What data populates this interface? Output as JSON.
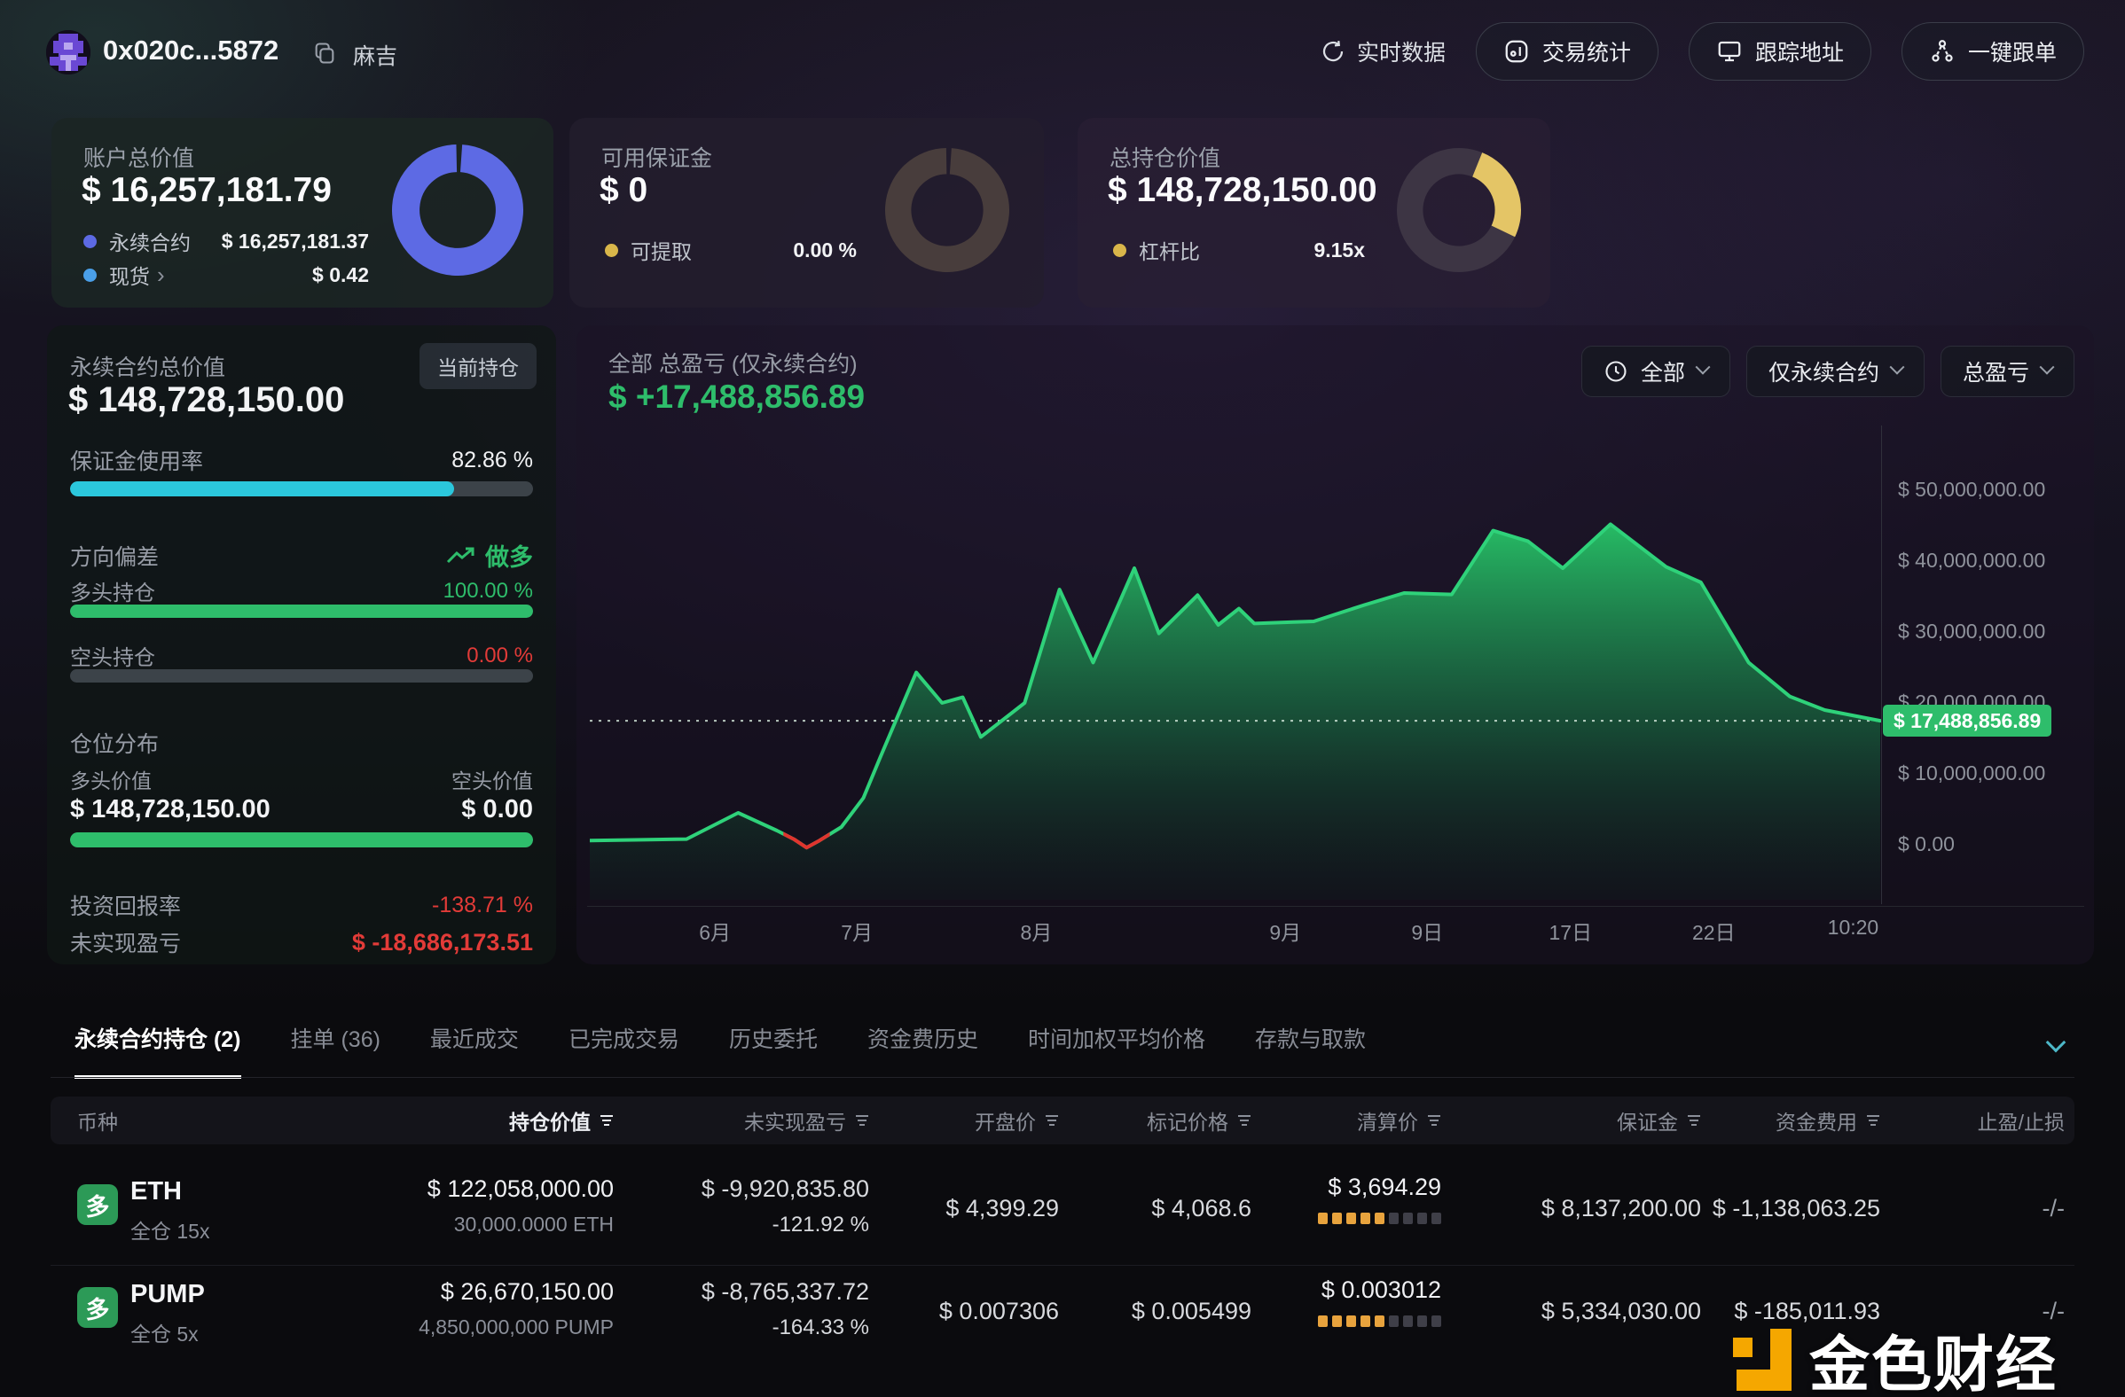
{
  "header": {
    "address": "0x020c...5872",
    "alias": "麻吉",
    "live_label": "实时数据",
    "buttons": [
      {
        "label": "交易统计",
        "icon": "stats-icon"
      },
      {
        "label": "跟踪地址",
        "icon": "monitor-icon"
      },
      {
        "label": "一键跟单",
        "icon": "copy-trade-icon"
      }
    ]
  },
  "colors": {
    "green": "#2ebd6b",
    "red": "#e23b38",
    "cyan": "#2bc7dc",
    "blue": "#5d6ae4",
    "light_blue": "#4a9fe8",
    "yellow": "#e4c566",
    "orange": "#f5a700"
  },
  "stat_cards": [
    {
      "title": "账户总价值",
      "value": "$ 16,257,181.79",
      "rows": [
        {
          "label": "永续合约",
          "value": "$ 16,257,181.37",
          "dot": "#5d6ae4",
          "arrow": ""
        },
        {
          "label": "现货",
          "value": "$ 0.42",
          "dot": "#4a9fe8",
          "arrow": "›"
        }
      ],
      "donut": {
        "color": "#5d6ae4",
        "track": "",
        "fraction": 0.985,
        "rotate": -86
      }
    },
    {
      "title": "可用保证金",
      "value": "$ 0",
      "rows": [
        {
          "label": "可提取",
          "value": "0.00 %",
          "dot": "#d9b64a",
          "arrow": ""
        }
      ],
      "donut": {
        "color": "#483d3c",
        "track": "",
        "fraction": 0.985,
        "rotate": -86
      }
    },
    {
      "title": "总持仓价值",
      "value": "$ 148,728,150.00",
      "rows": [
        {
          "label": "杠杆比",
          "value": "9.15x",
          "dot": "#d9b64a",
          "arrow": ""
        }
      ],
      "donut": {
        "color": "#e4c566",
        "track": "#3d3544",
        "fraction": 0.26,
        "rotate": -68
      }
    }
  ],
  "position_panel": {
    "title": "永续合约总价值",
    "badge": "当前持仓",
    "value": "$ 148,728,150.00",
    "margin_label": "保证金使用率",
    "margin_value": "82.86 %",
    "margin_pct": 82.86,
    "bias_label": "方向偏差",
    "bias_value": "做多",
    "long_label": "多头持仓",
    "long_value": "100.00 %",
    "long_pct": 100,
    "short_label": "空头持仓",
    "short_value": "0.00 %",
    "short_pct": 0,
    "dist_label": "仓位分布",
    "long_val_label": "多头价值",
    "long_val": "$ 148,728,150.00",
    "short_val_label": "空头价值",
    "short_val": "$ 0.00",
    "dist_pct": 100,
    "roi_label": "投资回报率",
    "roi_value": "-138.71 %",
    "upnl_label": "未实现盈亏",
    "upnl_value": "$ -18,686,173.51"
  },
  "chart_panel": {
    "title": "全部 总盈亏 (仅永续合约)",
    "value": "$ +17,488,856.89",
    "filters": [
      {
        "label": "全部",
        "icon": "clock-icon"
      },
      {
        "label": "仅永续合约",
        "icon": ""
      },
      {
        "label": "总盈亏",
        "icon": ""
      }
    ]
  },
  "chart_data": {
    "type": "area",
    "title": "全部 总盈亏 (仅永续合约)",
    "unit": "USD (millions)",
    "ylim": [
      0,
      50000000
    ],
    "current_value": 17488856.89,
    "current_value_label": "$ 17,488,856.89",
    "line_color": "#2fd27a",
    "dip_color": "#e0342e",
    "y_ticks": [
      {
        "label": "$ 50,000,000.00",
        "value": 50
      },
      {
        "label": "$ 40,000,000.00",
        "value": 40
      },
      {
        "label": "$ 30,000,000.00",
        "value": 30
      },
      {
        "label": "$ 20,000,000.00",
        "value": 20
      },
      {
        "label": "$ 10,000,000.00",
        "value": 10
      },
      {
        "label": "$ 0.00",
        "value": 0
      }
    ],
    "x_ticks": [
      {
        "label": "6月",
        "pos": 0.097
      },
      {
        "label": "7月",
        "pos": 0.207
      },
      {
        "label": "8月",
        "pos": 0.346
      },
      {
        "label": "9月",
        "pos": 0.539
      },
      {
        "label": "9日",
        "pos": 0.649
      },
      {
        "label": "17日",
        "pos": 0.76
      },
      {
        "label": "22日",
        "pos": 0.871
      },
      {
        "label": "10:20",
        "pos": 0.979
      }
    ],
    "x": [
      0.0,
      0.04,
      0.075,
      0.115,
      0.145,
      0.158,
      0.168,
      0.178,
      0.195,
      0.212,
      0.225,
      0.253,
      0.273,
      0.289,
      0.303,
      0.337,
      0.364,
      0.39,
      0.422,
      0.441,
      0.471,
      0.487,
      0.503,
      0.515,
      0.545,
      0.561,
      0.6,
      0.631,
      0.668,
      0.7,
      0.727,
      0.754,
      0.791,
      0.834,
      0.861,
      0.898,
      0.93,
      0.957,
      1.0
    ],
    "y_musd": [
      0.6,
      0.7,
      0.8,
      4.5,
      2.0,
      0.8,
      -0.4,
      0.6,
      2.5,
      6.6,
      12.3,
      24.3,
      20.0,
      20.8,
      15.2,
      20.0,
      36.0,
      25.7,
      39.0,
      29.8,
      35.2,
      31.0,
      33.3,
      31.2,
      31.4,
      31.5,
      33.8,
      35.5,
      35.3,
      44.3,
      42.8,
      39.0,
      45.2,
      39.2,
      37.0,
      25.7,
      20.9,
      19.0,
      17.49
    ],
    "red_x_range": [
      0.15,
      0.186
    ]
  },
  "tabs": [
    {
      "label": "永续合约持仓 (2)",
      "active": true
    },
    {
      "label": "挂单 (36)",
      "active": false
    },
    {
      "label": "最近成交",
      "active": false
    },
    {
      "label": "已完成交易",
      "active": false
    },
    {
      "label": "历史委托",
      "active": false
    },
    {
      "label": "资金费历史",
      "active": false
    },
    {
      "label": "时间加权平均价格",
      "active": false
    },
    {
      "label": "存款与取款",
      "active": false
    }
  ],
  "table": {
    "columns": [
      {
        "label": "币种",
        "sortable": false
      },
      {
        "label": "持仓价值",
        "sortable": true,
        "active": true
      },
      {
        "label": "未实现盈亏",
        "sortable": true
      },
      {
        "label": "开盘价",
        "sortable": true
      },
      {
        "label": "标记价格",
        "sortable": true
      },
      {
        "label": "清算价",
        "sortable": true
      },
      {
        "label": "保证金",
        "sortable": true
      },
      {
        "label": "资金费用",
        "sortable": true
      },
      {
        "label": "止盈/止损",
        "sortable": false
      }
    ],
    "rows": [
      {
        "side": "多",
        "symbol": "ETH",
        "mode": "全仓 15x",
        "value": "$ 122,058,000.00",
        "amount": "30,000.0000 ETH",
        "pnl": "$ -9,920,835.80",
        "pnl_pct": "-121.92 %",
        "open": "$ 4,399.29",
        "mark": "$ 4,068.6",
        "liq": "$ 3,694.29",
        "liq_dots": {
          "filled": 5,
          "total": 9
        },
        "margin": "$ 8,137,200.00",
        "funding": "$ -1,138,063.25",
        "tpsl": "-/-"
      },
      {
        "side": "多",
        "symbol": "PUMP",
        "mode": "全仓 5x",
        "value": "$ 26,670,150.00",
        "amount": "4,850,000,000 PUMP",
        "pnl": "$ -8,765,337.72",
        "pnl_pct": "-164.33 %",
        "open": "$ 0.007306",
        "mark": "$ 0.005499",
        "liq": "$ 0.003012",
        "liq_dots": {
          "filled": 5,
          "total": 9
        },
        "margin": "$ 5,334,030.00",
        "funding": "$ -185,011.93",
        "tpsl": "-/-"
      }
    ]
  },
  "watermark": {
    "text": "金色财经"
  }
}
